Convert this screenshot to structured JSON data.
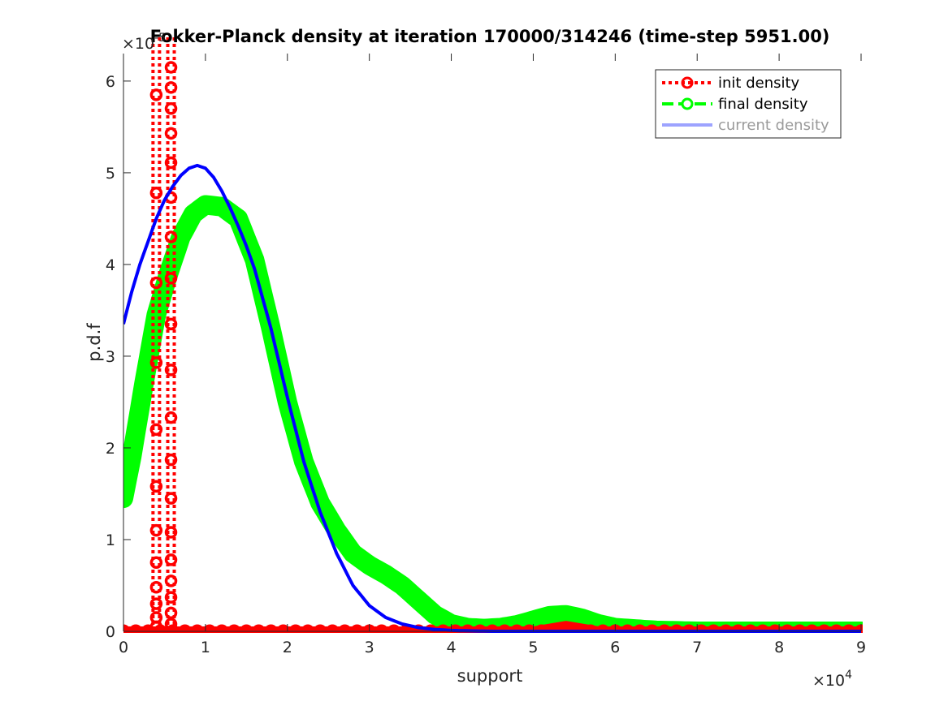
{
  "chart_data": {
    "type": "line",
    "title": "Fokker-Planck density at iteration 170000/314246 (time-step 5951.00)",
    "xlabel": "support",
    "ylabel": "p.d.f",
    "x_multiplier": "×10",
    "x_multiplier_exp": "4",
    "y_multiplier": "×10",
    "y_multiplier_exp": "-5",
    "xlim": [
      0,
      9
    ],
    "ylim": [
      0,
      6.3
    ],
    "xticks": [
      0,
      1,
      2,
      3,
      4,
      5,
      6,
      7,
      8,
      9
    ],
    "yticks": [
      0,
      1,
      2,
      3,
      4,
      5,
      6
    ],
    "grid": false,
    "legend_position": "top-right",
    "colors": {
      "init": "#ff0000",
      "final": "#00ff00",
      "current": "#0000ff"
    },
    "series": [
      {
        "name": "init density",
        "style": "dotted-circles",
        "spikes": [
          {
            "x": 0.4,
            "values": [
              0.05,
              0.15,
              0.3,
              0.48,
              0.75,
              1.1,
              1.58,
              2.2,
              2.93,
              3.8,
              4.78,
              5.85
            ]
          },
          {
            "x": 0.58,
            "values": [
              0.08,
              0.2,
              0.37,
              0.55,
              0.78,
              1.08,
              1.45,
              1.87,
              2.33,
              2.85,
              3.35,
              3.85,
              4.3,
              4.73,
              5.11,
              5.43,
              5.7,
              5.93,
              6.15
            ]
          }
        ],
        "baseline": [
          [
            0,
            0
          ],
          [
            5.0,
            0
          ],
          [
            5.4,
            0.06
          ],
          [
            5.8,
            0
          ],
          [
            9.0,
            0
          ]
        ]
      },
      {
        "name": "final density",
        "style": "dashed-circles",
        "x": [
          0,
          0.1,
          0.25,
          0.4,
          0.55,
          0.7,
          0.85,
          1.0,
          1.2,
          1.4,
          1.6,
          1.8,
          2.0,
          2.2,
          2.4,
          2.6,
          2.8,
          3.0,
          3.2,
          3.4,
          3.6,
          3.8,
          4.0,
          4.2,
          4.4,
          4.6,
          4.8,
          5.0,
          5.2,
          5.4,
          5.6,
          5.8,
          6.0,
          6.5,
          7.0,
          8.0,
          9.0
        ],
        "values": [
          1.45,
          1.9,
          2.7,
          3.45,
          3.9,
          4.3,
          4.55,
          4.65,
          4.63,
          4.5,
          4.05,
          3.3,
          2.5,
          1.85,
          1.4,
          1.1,
          0.85,
          0.72,
          0.62,
          0.5,
          0.34,
          0.18,
          0.08,
          0.04,
          0.03,
          0.04,
          0.07,
          0.12,
          0.17,
          0.18,
          0.14,
          0.08,
          0.04,
          0.01,
          0.0,
          0.0,
          0.0
        ]
      },
      {
        "name": "current density",
        "style": "solid",
        "x": [
          0,
          0.1,
          0.2,
          0.3,
          0.4,
          0.5,
          0.6,
          0.7,
          0.8,
          0.9,
          1.0,
          1.1,
          1.2,
          1.3,
          1.4,
          1.5,
          1.6,
          1.8,
          2.0,
          2.2,
          2.4,
          2.6,
          2.8,
          3.0,
          3.2,
          3.4,
          3.6,
          3.8,
          4.0,
          4.2,
          4.5,
          5.0,
          6.0,
          7.0,
          8.0,
          9.0
        ],
        "values": [
          3.35,
          3.7,
          4.0,
          4.25,
          4.5,
          4.7,
          4.85,
          4.97,
          5.05,
          5.08,
          5.05,
          4.95,
          4.8,
          4.62,
          4.42,
          4.2,
          3.95,
          3.3,
          2.55,
          1.85,
          1.3,
          0.85,
          0.5,
          0.28,
          0.15,
          0.08,
          0.04,
          0.02,
          0.01,
          0.005,
          0.0,
          0.0,
          0.0,
          0.0,
          0.0,
          0.0
        ]
      }
    ]
  }
}
